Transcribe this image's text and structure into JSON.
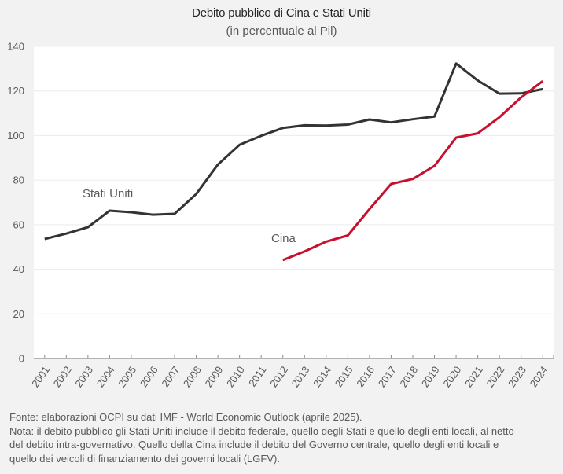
{
  "chart_data": {
    "type": "line",
    "title": "Debito pubblico di Cina e Stati Uniti",
    "subtitle": "(in percentuale al Pil)",
    "xlabel": "",
    "ylabel": "",
    "ylim": [
      0,
      140
    ],
    "yticks": [
      0,
      20,
      40,
      60,
      80,
      100,
      120,
      140
    ],
    "grid": true,
    "legend": "inline labels",
    "categories": [
      "2001",
      "2002",
      "2003",
      "2004",
      "2005",
      "2006",
      "2007",
      "2008",
      "2009",
      "2010",
      "2011",
      "2012",
      "2013",
      "2014",
      "2015",
      "2016",
      "2017",
      "2018",
      "2019",
      "2020",
      "2021",
      "2022",
      "2023",
      "2024"
    ],
    "series": [
      {
        "name": "Stati Uniti",
        "color": "#333333",
        "values": [
          53.6,
          56.0,
          58.9,
          66.3,
          65.6,
          64.5,
          64.9,
          73.8,
          87.0,
          95.8,
          99.9,
          103.4,
          104.6,
          104.5,
          104.9,
          107.2,
          105.9,
          107.3,
          108.5,
          132.3,
          124.7,
          118.8,
          118.9,
          120.8
        ]
      },
      {
        "name": "Cina",
        "color": "#C8102E",
        "values": [
          null,
          null,
          null,
          null,
          null,
          null,
          null,
          null,
          null,
          null,
          null,
          44.1,
          48.0,
          52.4,
          55.2,
          67.0,
          78.3,
          80.5,
          86.4,
          99.1,
          101.0,
          108.2,
          117.1,
          124.4
        ]
      }
    ],
    "annotations": [
      {
        "text": "Stati Uniti",
        "series": "Stati Uniti"
      },
      {
        "text": "Cina",
        "series": "Cina"
      }
    ]
  },
  "footnote": {
    "lines": [
      "Fonte: elaborazioni OCPI su dati IMF - World Economic Outlook (aprile 2025).",
      "Nota: il debito pubblico gli Stati Uniti include il debito federale, quello degli Stati e quello degli enti locali, al netto",
      "del debito intra-governativo. Quello della Cina include il debito del Governo centrale, quello degli enti locali e",
      "quello dei veicoli di finanziamento dei governi locali (LGFV)."
    ]
  }
}
